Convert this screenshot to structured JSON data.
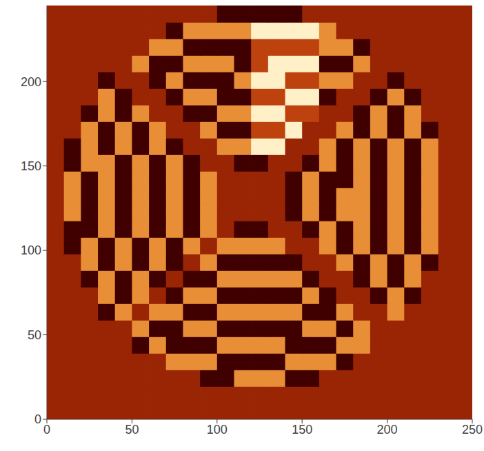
{
  "chart_data": {
    "type": "heatmap",
    "x": [
      5,
      15,
      25,
      35,
      45,
      55,
      65,
      75,
      85,
      95,
      105,
      115,
      125,
      135,
      145,
      155,
      165,
      175,
      185,
      195,
      205,
      215,
      225,
      235,
      245
    ],
    "y": [
      4.9,
      14.7,
      24.5,
      34.3,
      44.1,
      53.9,
      63.7,
      73.5,
      83.3,
      93.1,
      102.9,
      112.7,
      122.5,
      132.3,
      142.1,
      151.9,
      161.7,
      171.5,
      181.3,
      191.1,
      200.9,
      210.7,
      220.5,
      230.3,
      240.1
    ],
    "cells": [
      [
        4,
        4,
        4,
        4,
        4,
        4,
        4,
        4,
        4,
        4,
        4,
        4,
        4,
        4,
        4,
        4,
        4,
        4,
        4,
        4,
        4,
        4,
        4,
        4,
        4
      ],
      [
        4,
        4,
        4,
        4,
        4,
        4,
        4,
        4,
        4,
        4,
        4,
        4,
        4,
        4,
        4,
        4,
        4,
        4,
        4,
        4,
        4,
        4,
        4,
        4,
        4
      ],
      [
        4,
        4,
        4,
        4,
        4,
        4,
        4,
        4,
        4,
        2,
        2,
        7,
        7,
        7,
        2,
        2,
        4,
        4,
        4,
        4,
        4,
        4,
        4,
        4,
        4
      ],
      [
        4,
        4,
        4,
        4,
        4,
        4,
        4,
        7,
        7,
        7,
        2,
        2,
        2,
        2,
        7,
        7,
        7,
        2,
        4,
        4,
        4,
        4,
        4,
        4,
        4
      ],
      [
        4,
        4,
        4,
        4,
        4,
        2,
        7,
        2,
        2,
        2,
        7,
        7,
        7,
        7,
        2,
        2,
        2,
        7,
        7,
        4,
        4,
        4,
        4,
        4,
        4
      ],
      [
        4,
        4,
        4,
        4,
        4,
        7,
        2,
        2,
        7,
        7,
        2,
        2,
        2,
        2,
        2,
        7,
        7,
        2,
        7,
        4,
        4,
        4,
        4,
        4,
        4
      ],
      [
        4,
        4,
        4,
        2,
        7,
        4,
        7,
        7,
        2,
        2,
        7,
        7,
        7,
        7,
        7,
        2,
        2,
        7,
        4,
        4,
        7,
        4,
        4,
        4,
        4
      ],
      [
        4,
        4,
        4,
        7,
        2,
        7,
        4,
        2,
        7,
        7,
        2,
        2,
        2,
        2,
        2,
        7,
        2,
        4,
        4,
        2,
        7,
        2,
        4,
        4,
        4
      ],
      [
        4,
        4,
        2,
        7,
        2,
        7,
        2,
        4,
        2,
        2,
        7,
        7,
        7,
        7,
        7,
        2,
        4,
        4,
        2,
        7,
        2,
        7,
        4,
        4,
        4
      ],
      [
        4,
        4,
        7,
        2,
        7,
        2,
        7,
        2,
        4,
        7,
        2,
        2,
        2,
        2,
        2,
        4,
        4,
        7,
        2,
        7,
        2,
        7,
        2,
        4,
        4
      ],
      [
        4,
        2,
        7,
        2,
        7,
        2,
        7,
        2,
        7,
        4,
        7,
        7,
        7,
        7,
        4,
        4,
        7,
        2,
        7,
        2,
        7,
        2,
        7,
        4,
        4
      ],
      [
        4,
        2,
        2,
        7,
        2,
        7,
        2,
        7,
        2,
        7,
        4,
        2,
        2,
        4,
        4,
        2,
        7,
        2,
        7,
        2,
        7,
        2,
        7,
        4,
        4
      ],
      [
        4,
        7,
        2,
        7,
        2,
        7,
        2,
        7,
        2,
        7,
        4,
        4,
        4,
        4,
        2,
        7,
        2,
        7,
        7,
        2,
        7,
        2,
        7,
        4,
        4
      ],
      [
        4,
        7,
        2,
        7,
        2,
        7,
        2,
        7,
        2,
        7,
        4,
        4,
        4,
        4,
        2,
        7,
        2,
        7,
        7,
        2,
        7,
        2,
        7,
        4,
        4
      ],
      [
        4,
        7,
        2,
        7,
        2,
        7,
        2,
        7,
        2,
        7,
        4,
        4,
        4,
        4,
        2,
        7,
        2,
        2,
        7,
        2,
        7,
        2,
        7,
        4,
        4
      ],
      [
        4,
        2,
        7,
        7,
        2,
        7,
        2,
        7,
        2,
        4,
        4,
        2,
        2,
        4,
        4,
        2,
        7,
        2,
        7,
        2,
        7,
        2,
        7,
        4,
        4
      ],
      [
        4,
        2,
        7,
        2,
        7,
        2,
        7,
        2,
        4,
        4,
        7,
        7,
        9,
        9,
        4,
        4,
        7,
        2,
        7,
        2,
        7,
        2,
        7,
        4,
        4
      ],
      [
        4,
        4,
        7,
        2,
        7,
        2,
        7,
        4,
        4,
        7,
        2,
        2,
        5,
        5,
        9,
        4,
        4,
        7,
        2,
        7,
        2,
        7,
        2,
        4,
        4
      ],
      [
        4,
        4,
        2,
        7,
        2,
        7,
        4,
        4,
        2,
        2,
        7,
        7,
        9,
        9,
        5,
        5,
        4,
        4,
        2,
        7,
        2,
        7,
        4,
        4,
        4
      ],
      [
        4,
        4,
        4,
        7,
        2,
        4,
        4,
        2,
        7,
        7,
        2,
        2,
        5,
        5,
        9,
        9,
        2,
        4,
        4,
        2,
        7,
        2,
        4,
        4,
        4
      ],
      [
        4,
        4,
        4,
        2,
        4,
        4,
        2,
        7,
        2,
        2,
        2,
        7,
        9,
        9,
        5,
        5,
        7,
        7,
        4,
        4,
        2,
        4,
        4,
        4,
        4
      ],
      [
        4,
        4,
        4,
        4,
        4,
        7,
        2,
        2,
        7,
        7,
        7,
        2,
        5,
        9,
        9,
        9,
        2,
        2,
        7,
        4,
        4,
        4,
        4,
        4,
        4
      ],
      [
        4,
        4,
        4,
        4,
        4,
        4,
        7,
        7,
        2,
        2,
        2,
        2,
        5,
        5,
        5,
        5,
        7,
        7,
        2,
        4,
        4,
        4,
        4,
        4,
        4
      ],
      [
        4,
        4,
        4,
        4,
        4,
        4,
        4,
        2,
        7,
        7,
        7,
        7,
        9,
        9,
        9,
        9,
        7,
        4,
        4,
        4,
        4,
        4,
        4,
        4,
        4
      ],
      [
        4,
        4,
        4,
        4,
        4,
        4,
        4,
        4,
        4,
        4,
        2,
        2,
        2,
        2,
        2,
        4,
        4,
        4,
        4,
        4,
        4,
        4,
        4,
        4,
        4
      ]
    ],
    "xlim": [
      0,
      250
    ],
    "ylim": [
      0,
      245
    ],
    "xticks": [
      0,
      50,
      100,
      150,
      200,
      250
    ],
    "yticks": [
      0,
      50,
      100,
      150,
      200
    ]
  }
}
